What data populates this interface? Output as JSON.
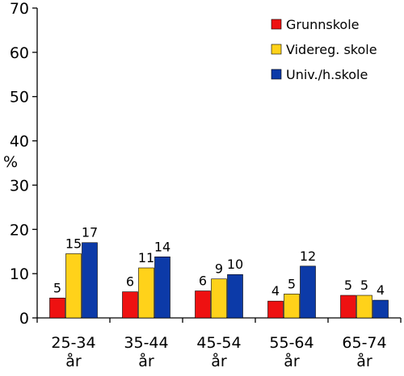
{
  "chart_data": {
    "type": "bar",
    "ylabel": "%",
    "ylim": [
      0,
      70
    ],
    "yticks": [
      0,
      10,
      20,
      30,
      40,
      50,
      60,
      70
    ],
    "grid": false,
    "legend_position": "top-right",
    "categories": [
      [
        "25-34",
        "år"
      ],
      [
        "35-44",
        "år"
      ],
      [
        "45-54",
        "år"
      ],
      [
        "55-64",
        "år"
      ],
      [
        "65-74",
        "år"
      ]
    ],
    "series": [
      {
        "name": "Grunnskole",
        "color": "#ee1111",
        "values": [
          4.5,
          5.9,
          6.1,
          3.8,
          5.1
        ],
        "labels": [
          "5",
          "6",
          "6",
          "4",
          "5"
        ]
      },
      {
        "name": "Videreg.  skole",
        "color": "#ffd21a",
        "values": [
          14.5,
          11.3,
          8.8,
          5.4,
          5.1
        ],
        "labels": [
          "15",
          "11",
          "9",
          "5",
          "5"
        ]
      },
      {
        "name": "Univ./h.skole",
        "color": "#0c3aa8",
        "values": [
          17.0,
          13.8,
          9.8,
          11.7,
          4.0
        ],
        "labels": [
          "17",
          "14",
          "10",
          "12",
          "4"
        ]
      }
    ]
  }
}
